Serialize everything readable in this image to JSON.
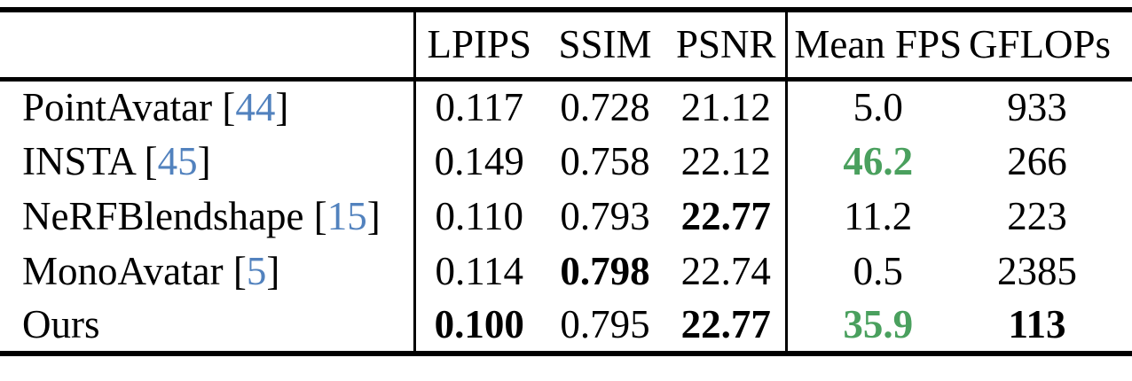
{
  "colors": {
    "citation_blue": "#5282be",
    "highlight_green": "#4aa05e",
    "text": "#000000",
    "background": "#ffffff"
  },
  "table": {
    "column_headers": [
      "LPIPS",
      "SSIM",
      "PSNR",
      "Mean FPS",
      "GFLOPs"
    ],
    "rows": [
      {
        "method": "PointAvatar",
        "citation": "44",
        "values": [
          {
            "text": "0.117",
            "bold": false,
            "green": false
          },
          {
            "text": "0.728",
            "bold": false,
            "green": false
          },
          {
            "text": "21.12",
            "bold": false,
            "green": false
          },
          {
            "text": "5.0",
            "bold": false,
            "green": false
          },
          {
            "text": "933",
            "bold": false,
            "green": false
          }
        ]
      },
      {
        "method": "INSTA",
        "citation": "45",
        "values": [
          {
            "text": "0.149",
            "bold": false,
            "green": false
          },
          {
            "text": "0.758",
            "bold": false,
            "green": false
          },
          {
            "text": "22.12",
            "bold": false,
            "green": false
          },
          {
            "text": "46.2",
            "bold": true,
            "green": true
          },
          {
            "text": "266",
            "bold": false,
            "green": false
          }
        ]
      },
      {
        "method": "NeRFBlendshape",
        "citation": "15",
        "values": [
          {
            "text": "0.110",
            "bold": false,
            "green": false
          },
          {
            "text": "0.793",
            "bold": false,
            "green": false
          },
          {
            "text": "22.77",
            "bold": true,
            "green": false
          },
          {
            "text": "11.2",
            "bold": false,
            "green": false
          },
          {
            "text": "223",
            "bold": false,
            "green": false
          }
        ]
      },
      {
        "method": "MonoAvatar",
        "citation": "5",
        "values": [
          {
            "text": "0.114",
            "bold": false,
            "green": false
          },
          {
            "text": "0.798",
            "bold": true,
            "green": false
          },
          {
            "text": "22.74",
            "bold": false,
            "green": false
          },
          {
            "text": "0.5",
            "bold": false,
            "green": false
          },
          {
            "text": "2385",
            "bold": false,
            "green": false
          }
        ]
      },
      {
        "method": "Ours",
        "citation": null,
        "values": [
          {
            "text": "0.100",
            "bold": true,
            "green": false
          },
          {
            "text": "0.795",
            "bold": false,
            "green": false
          },
          {
            "text": "22.77",
            "bold": true,
            "green": false
          },
          {
            "text": "35.9",
            "bold": true,
            "green": true
          },
          {
            "text": "113",
            "bold": true,
            "green": false
          }
        ]
      }
    ]
  }
}
